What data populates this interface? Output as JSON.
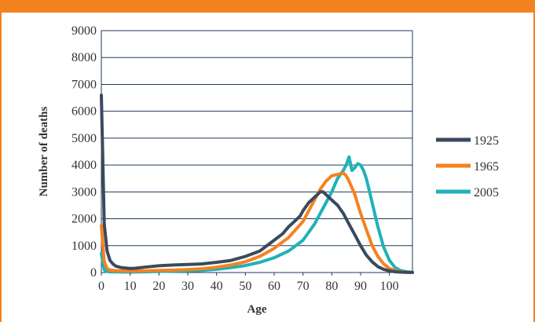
{
  "chart_data": {
    "type": "line",
    "title": "",
    "xlabel": "Age",
    "ylabel": "Number of deaths",
    "xlim": [
      0,
      108
    ],
    "ylim": [
      0,
      9000
    ],
    "xticks": [
      0,
      10,
      20,
      30,
      40,
      50,
      60,
      70,
      80,
      90,
      100
    ],
    "yticks": [
      0,
      1000,
      2000,
      3000,
      4000,
      5000,
      6000,
      7000,
      8000,
      9000
    ],
    "grid": "horizontal",
    "legend_position": "right",
    "series": [
      {
        "name": "1925",
        "color": "#3a4a5c",
        "x": [
          0,
          1,
          2,
          3,
          4,
          5,
          7,
          10,
          12,
          15,
          20,
          25,
          30,
          35,
          40,
          45,
          50,
          55,
          60,
          63,
          65,
          67,
          69,
          70,
          72,
          74,
          76,
          77,
          78,
          80,
          82,
          84,
          86,
          88,
          90,
          92,
          94,
          96,
          98,
          100,
          102,
          104,
          106,
          108
        ],
        "y": [
          6600,
          1800,
          800,
          450,
          320,
          240,
          180,
          150,
          160,
          200,
          250,
          280,
          300,
          320,
          380,
          450,
          600,
          800,
          1200,
          1450,
          1700,
          1900,
          2100,
          2300,
          2600,
          2800,
          3000,
          3000,
          2900,
          2700,
          2500,
          2200,
          1800,
          1400,
          1000,
          650,
          400,
          220,
          120,
          60,
          30,
          15,
          5,
          2
        ]
      },
      {
        "name": "1965",
        "color": "#f58220",
        "x": [
          0,
          1,
          2,
          3,
          5,
          10,
          15,
          20,
          25,
          30,
          35,
          40,
          45,
          50,
          55,
          60,
          65,
          70,
          72,
          74,
          76,
          78,
          80,
          82,
          84,
          85,
          86,
          88,
          90,
          92,
          94,
          96,
          98,
          100,
          102,
          104,
          106,
          108
        ],
        "y": [
          1750,
          400,
          150,
          90,
          70,
          50,
          60,
          80,
          90,
          110,
          140,
          200,
          280,
          400,
          600,
          900,
          1300,
          1900,
          2300,
          2700,
          3100,
          3400,
          3600,
          3650,
          3700,
          3600,
          3400,
          2900,
          2200,
          1600,
          1000,
          600,
          320,
          150,
          70,
          30,
          10,
          3
        ]
      },
      {
        "name": "2005",
        "color": "#1fb2b8",
        "x": [
          0,
          1,
          2,
          3,
          5,
          10,
          15,
          20,
          25,
          30,
          35,
          40,
          45,
          50,
          55,
          60,
          65,
          70,
          74,
          78,
          80,
          82,
          84,
          85,
          86,
          87,
          88,
          89,
          90,
          91,
          92,
          94,
          96,
          98,
          100,
          102,
          104,
          106,
          108
        ],
        "y": [
          700,
          100,
          40,
          25,
          20,
          15,
          25,
          40,
          50,
          60,
          80,
          120,
          180,
          260,
          380,
          550,
          800,
          1200,
          1800,
          2600,
          3000,
          3500,
          3800,
          4000,
          4300,
          3800,
          3900,
          4050,
          4000,
          3800,
          3500,
          2600,
          1700,
          950,
          450,
          180,
          70,
          25,
          8
        ]
      }
    ]
  }
}
